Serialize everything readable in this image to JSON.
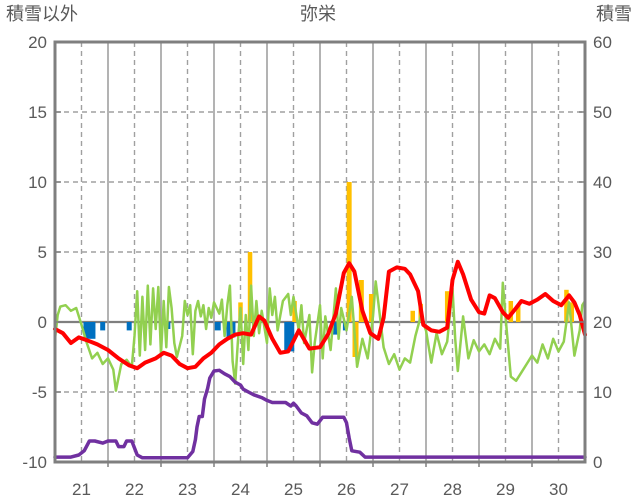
{
  "chart_data": {
    "type": "line",
    "title": "弥栄",
    "legend": "none",
    "grid": "on",
    "left_axis": {
      "title": "積雪以外",
      "ticks": [
        20,
        15,
        10,
        5,
        0,
        -5,
        -10
      ],
      "range": [
        -10,
        20
      ]
    },
    "right_axis": {
      "title": "積雪",
      "ticks": [
        60,
        50,
        40,
        30,
        20,
        10,
        0
      ],
      "range": [
        0,
        60
      ]
    },
    "x_axis": {
      "ticks": [
        21,
        22,
        23,
        24,
        25,
        26,
        27,
        28,
        29,
        30
      ],
      "range": [
        21,
        31
      ]
    },
    "colors": {
      "red_line": "#FF0000",
      "green_line": "#92D050",
      "purple_line": "#7030A0",
      "yellow_bars": "#FFC000",
      "blue_bars": "#0070C0",
      "frame": "#7F7F7F",
      "grid": "#A0A0A0",
      "text": "#595959"
    },
    "series": [
      {
        "name": "yellow-bars",
        "type": "bar",
        "axis": "left",
        "color": "#FFC000",
        "points": [
          [
            24.5,
            1.4
          ],
          [
            24.68,
            5.0
          ],
          [
            25.52,
            1.5
          ],
          [
            26.55,
            10.0,
            5
          ],
          [
            26.67,
            -2.5,
            6
          ],
          [
            26.78,
            3.0,
            5
          ],
          [
            26.97,
            2.0,
            5
          ],
          [
            27.75,
            0.8
          ],
          [
            27.9,
            1.3
          ],
          [
            28.4,
            2.2
          ],
          [
            29.6,
            1.5
          ],
          [
            29.74,
            1.2
          ],
          [
            30.65,
            2.3
          ],
          [
            30.75,
            1.4
          ]
        ]
      },
      {
        "name": "blue-bars",
        "type": "bar",
        "axis": "left",
        "color": "#0070C0",
        "points": [
          [
            21.65,
            -1.2,
            12
          ],
          [
            21.9,
            -0.6,
            5
          ],
          [
            22.4,
            -0.6,
            5
          ],
          [
            23.12,
            -0.5,
            6
          ],
          [
            24.07,
            -0.6,
            6
          ],
          [
            24.32,
            -1.1,
            9
          ],
          [
            25.42,
            -2.1,
            10
          ],
          [
            26.28,
            -0.9,
            6
          ],
          [
            26.47,
            -0.6,
            4
          ]
        ]
      },
      {
        "name": "green-line",
        "type": "line",
        "axis": "left",
        "color": "#92D050",
        "width": 2.5,
        "points": [
          [
            21.0,
            -1.2
          ],
          [
            21.05,
            0.5
          ],
          [
            21.1,
            1.1
          ],
          [
            21.2,
            1.2
          ],
          [
            21.3,
            0.8
          ],
          [
            21.4,
            1.0
          ],
          [
            21.5,
            -0.2
          ],
          [
            21.6,
            -1.5
          ],
          [
            21.7,
            -2.6
          ],
          [
            21.8,
            -2.2
          ],
          [
            21.9,
            -3.0
          ],
          [
            22.0,
            -2.6
          ],
          [
            22.1,
            -3.4
          ],
          [
            22.15,
            -4.9
          ],
          [
            22.25,
            -3.0
          ],
          [
            22.35,
            -2.7
          ],
          [
            22.45,
            -3.2
          ],
          [
            22.5,
            -1.0
          ],
          [
            22.55,
            2.2
          ],
          [
            22.6,
            -2.4
          ],
          [
            22.65,
            1.8
          ],
          [
            22.7,
            -2.0
          ],
          [
            22.75,
            2.6
          ],
          [
            22.8,
            -1.6
          ],
          [
            22.85,
            2.4
          ],
          [
            22.9,
            -0.5
          ],
          [
            22.95,
            2.5
          ],
          [
            23.0,
            -2.3
          ],
          [
            23.05,
            1.5
          ],
          [
            23.1,
            -1.8
          ],
          [
            23.15,
            2.5
          ],
          [
            23.2,
            1.0
          ],
          [
            23.25,
            -1.5
          ],
          [
            23.3,
            -2.5
          ],
          [
            23.4,
            -1.0
          ],
          [
            23.45,
            1.5
          ],
          [
            23.5,
            0.5
          ],
          [
            23.55,
            1.2
          ],
          [
            23.6,
            -2.3
          ],
          [
            23.65,
            0.8
          ],
          [
            23.7,
            1.5
          ],
          [
            23.75,
            0.4
          ],
          [
            23.8,
            1.2
          ],
          [
            23.85,
            -0.5
          ],
          [
            23.9,
            1.0
          ],
          [
            23.95,
            0.3
          ],
          [
            24.0,
            1.4
          ],
          [
            24.1,
            0.6
          ],
          [
            24.15,
            1.6
          ],
          [
            24.2,
            -1.0
          ],
          [
            24.25,
            1.2
          ],
          [
            24.3,
            2.6
          ],
          [
            24.35,
            -2.8
          ],
          [
            24.4,
            -4.4
          ],
          [
            24.45,
            -1.5
          ],
          [
            24.5,
            1.0
          ],
          [
            24.55,
            -3.0
          ],
          [
            24.6,
            0.5
          ],
          [
            24.65,
            -2.0
          ],
          [
            24.7,
            2.6
          ],
          [
            24.75,
            -1.0
          ],
          [
            24.8,
            1.5
          ],
          [
            24.85,
            -0.8
          ],
          [
            24.9,
            0.8
          ],
          [
            25.0,
            -1.5
          ],
          [
            25.05,
            2.4
          ],
          [
            25.1,
            0.5
          ],
          [
            25.15,
            1.8
          ],
          [
            25.2,
            -0.6
          ],
          [
            25.3,
            1.5
          ],
          [
            25.4,
            2.0
          ],
          [
            25.45,
            0.5
          ],
          [
            25.5,
            1.8
          ],
          [
            25.6,
            -0.6
          ],
          [
            25.65,
            1.2
          ],
          [
            25.7,
            -1.5
          ],
          [
            25.8,
            0.5
          ],
          [
            25.85,
            -3.6
          ],
          [
            25.9,
            -1.5
          ],
          [
            26.0,
            1.2
          ],
          [
            26.05,
            -2.6
          ],
          [
            26.1,
            0.4
          ],
          [
            26.2,
            -2.0
          ],
          [
            26.3,
            2.4
          ],
          [
            26.35,
            -1.2
          ],
          [
            26.4,
            1.0
          ],
          [
            26.5,
            -0.6
          ],
          [
            26.6,
            1.8
          ],
          [
            26.7,
            -3.2
          ],
          [
            26.8,
            -1.2
          ],
          [
            26.9,
            -2.6
          ],
          [
            27.0,
            0.4
          ],
          [
            27.05,
            2.9
          ],
          [
            27.1,
            1.4
          ],
          [
            27.2,
            -1.8
          ],
          [
            27.3,
            -3.0
          ],
          [
            27.4,
            -2.3
          ],
          [
            27.5,
            -3.4
          ],
          [
            27.6,
            -2.6
          ],
          [
            27.7,
            -2.9
          ],
          [
            27.8,
            -1.0
          ],
          [
            27.9,
            0.4
          ],
          [
            28.0,
            -0.6
          ],
          [
            28.1,
            -2.9
          ],
          [
            28.2,
            -0.8
          ],
          [
            28.3,
            -2.3
          ],
          [
            28.4,
            -1.4
          ],
          [
            28.5,
            2.4
          ],
          [
            28.55,
            -1.2
          ],
          [
            28.6,
            -3.5
          ],
          [
            28.7,
            0.4
          ],
          [
            28.8,
            -2.6
          ],
          [
            28.9,
            -1.3
          ],
          [
            29.0,
            -2.1
          ],
          [
            29.1,
            -1.6
          ],
          [
            29.2,
            -2.3
          ],
          [
            29.3,
            -1.2
          ],
          [
            29.4,
            -1.9
          ],
          [
            29.45,
            2.8
          ],
          [
            29.5,
            0.4
          ],
          [
            29.6,
            -3.9
          ],
          [
            29.7,
            -4.2
          ],
          [
            29.8,
            -3.6
          ],
          [
            29.9,
            -3.0
          ],
          [
            30.0,
            -2.4
          ],
          [
            30.1,
            -2.9
          ],
          [
            30.2,
            -1.6
          ],
          [
            30.3,
            -2.6
          ],
          [
            30.4,
            -1.2
          ],
          [
            30.5,
            -2.1
          ],
          [
            30.6,
            -1.4
          ],
          [
            30.7,
            1.4
          ],
          [
            30.8,
            -2.4
          ],
          [
            30.9,
            -0.6
          ],
          [
            30.95,
            1.2
          ],
          [
            31.0,
            1.5
          ]
        ]
      },
      {
        "name": "red-line",
        "type": "line",
        "axis": "left",
        "color": "#FF0000",
        "width": 4,
        "points": [
          [
            21.0,
            -0.5
          ],
          [
            21.15,
            -0.8
          ],
          [
            21.3,
            -1.5
          ],
          [
            21.45,
            -1.1
          ],
          [
            21.6,
            -1.3
          ],
          [
            21.8,
            -1.6
          ],
          [
            22.0,
            -2.0
          ],
          [
            22.2,
            -2.6
          ],
          [
            22.4,
            -3.1
          ],
          [
            22.55,
            -3.3
          ],
          [
            22.7,
            -2.9
          ],
          [
            22.9,
            -2.6
          ],
          [
            23.05,
            -2.2
          ],
          [
            23.2,
            -2.4
          ],
          [
            23.35,
            -3.0
          ],
          [
            23.5,
            -3.3
          ],
          [
            23.65,
            -3.2
          ],
          [
            23.8,
            -2.6
          ],
          [
            23.95,
            -2.2
          ],
          [
            24.1,
            -1.6
          ],
          [
            24.25,
            -1.2
          ],
          [
            24.4,
            -0.9
          ],
          [
            24.55,
            -0.8
          ],
          [
            24.7,
            -0.9
          ],
          [
            24.85,
            0.4
          ],
          [
            24.95,
            0.1
          ],
          [
            25.1,
            -1.2
          ],
          [
            25.25,
            -2.2
          ],
          [
            25.4,
            -2.1
          ],
          [
            25.6,
            -0.6
          ],
          [
            25.8,
            -1.9
          ],
          [
            26.0,
            -1.8
          ],
          [
            26.15,
            -0.9
          ],
          [
            26.3,
            0.6
          ],
          [
            26.45,
            3.5
          ],
          [
            26.55,
            4.2
          ],
          [
            26.65,
            3.6
          ],
          [
            26.8,
            0.8
          ],
          [
            26.95,
            -0.8
          ],
          [
            27.1,
            -1.2
          ],
          [
            27.2,
            0.3
          ],
          [
            27.3,
            3.6
          ],
          [
            27.45,
            3.9
          ],
          [
            27.6,
            3.8
          ],
          [
            27.7,
            3.4
          ],
          [
            27.85,
            2.2
          ],
          [
            27.95,
            -0.2
          ],
          [
            28.1,
            -0.6
          ],
          [
            28.25,
            -0.7
          ],
          [
            28.4,
            -0.4
          ],
          [
            28.5,
            3.0
          ],
          [
            28.6,
            4.3
          ],
          [
            28.7,
            3.4
          ],
          [
            28.85,
            1.6
          ],
          [
            29.0,
            0.7
          ],
          [
            29.1,
            0.6
          ],
          [
            29.2,
            1.9
          ],
          [
            29.3,
            1.7
          ],
          [
            29.45,
            0.7
          ],
          [
            29.55,
            0.3
          ],
          [
            29.7,
            1.0
          ],
          [
            29.8,
            1.5
          ],
          [
            29.95,
            1.3
          ],
          [
            30.1,
            1.6
          ],
          [
            30.25,
            2.0
          ],
          [
            30.4,
            1.5
          ],
          [
            30.55,
            1.2
          ],
          [
            30.7,
            1.9
          ],
          [
            30.8,
            1.4
          ],
          [
            30.9,
            0.5
          ],
          [
            31.0,
            -0.9
          ]
        ]
      },
      {
        "name": "purple-line",
        "type": "line",
        "axis": "right",
        "color": "#7030A0",
        "width": 3.5,
        "points": [
          [
            21.0,
            0.7
          ],
          [
            21.3,
            0.7
          ],
          [
            21.45,
            1.0
          ],
          [
            21.55,
            1.6
          ],
          [
            21.65,
            3.0
          ],
          [
            21.75,
            3.0
          ],
          [
            21.9,
            2.7
          ],
          [
            22.0,
            3.0
          ],
          [
            22.15,
            3.0
          ],
          [
            22.2,
            2.2
          ],
          [
            22.3,
            2.2
          ],
          [
            22.35,
            3.0
          ],
          [
            22.45,
            3.0
          ],
          [
            22.55,
            1.0
          ],
          [
            22.65,
            0.6
          ],
          [
            23.5,
            0.6
          ],
          [
            23.6,
            1.5
          ],
          [
            23.65,
            3.2
          ],
          [
            23.68,
            5.0
          ],
          [
            23.72,
            6.5
          ],
          [
            23.78,
            6.5
          ],
          [
            23.82,
            9.0
          ],
          [
            23.88,
            10.5
          ],
          [
            23.92,
            12.0
          ],
          [
            24.0,
            13.0
          ],
          [
            24.1,
            13.1
          ],
          [
            24.2,
            12.6
          ],
          [
            24.3,
            12.2
          ],
          [
            24.4,
            11.4
          ],
          [
            24.5,
            11.0
          ],
          [
            24.55,
            10.4
          ],
          [
            24.65,
            10.0
          ],
          [
            24.75,
            9.6
          ],
          [
            24.9,
            9.2
          ],
          [
            25.0,
            8.8
          ],
          [
            25.1,
            8.5
          ],
          [
            25.35,
            8.5
          ],
          [
            25.45,
            8.0
          ],
          [
            25.5,
            8.4
          ],
          [
            25.55,
            8.0
          ],
          [
            25.65,
            7.0
          ],
          [
            25.75,
            6.6
          ],
          [
            25.85,
            5.6
          ],
          [
            25.95,
            5.4
          ],
          [
            26.05,
            6.4
          ],
          [
            26.45,
            6.4
          ],
          [
            26.5,
            5.6
          ],
          [
            26.55,
            3.4
          ],
          [
            26.6,
            1.6
          ],
          [
            26.75,
            1.4
          ],
          [
            26.85,
            0.7
          ],
          [
            31.0,
            0.7
          ]
        ]
      }
    ]
  }
}
